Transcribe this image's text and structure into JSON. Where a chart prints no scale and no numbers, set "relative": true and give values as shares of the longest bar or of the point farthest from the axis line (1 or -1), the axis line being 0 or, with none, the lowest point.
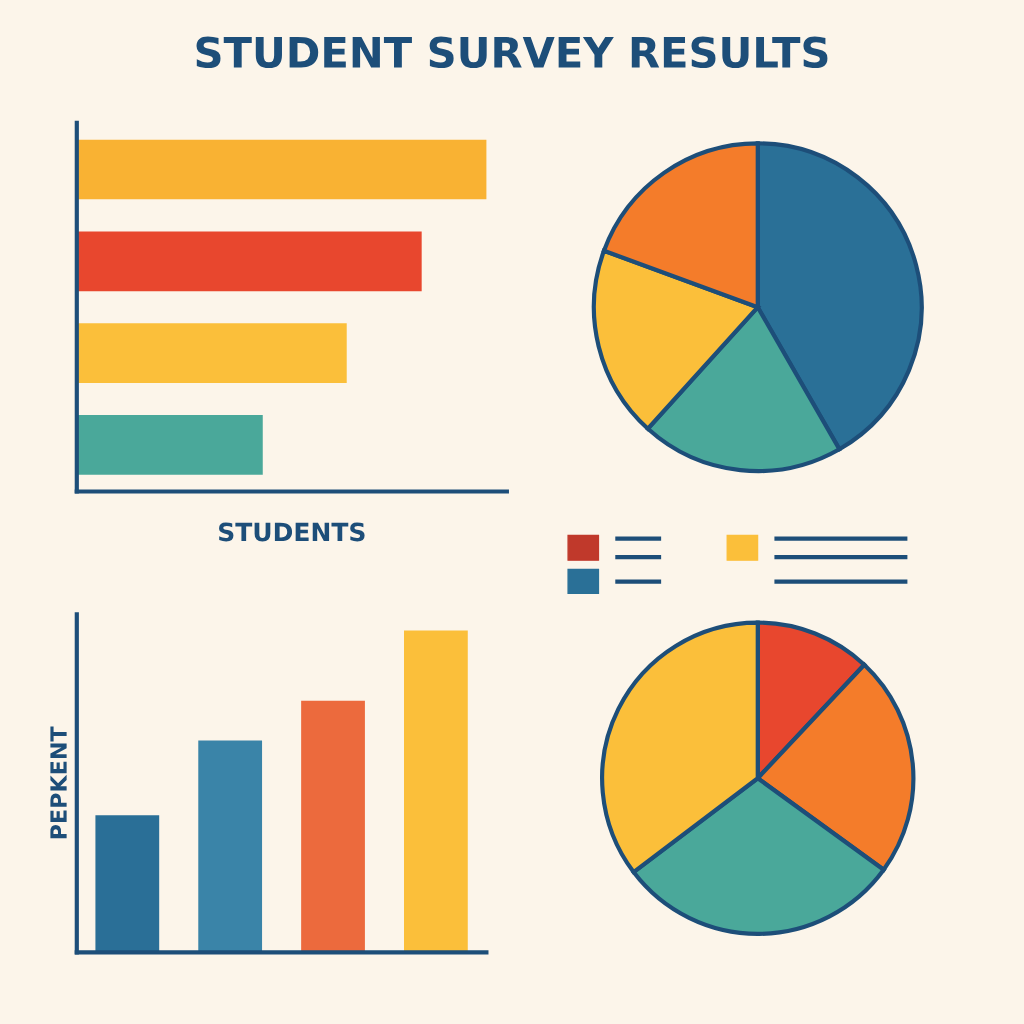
{
  "chart_data": [
    {
      "type": "bar",
      "title": "STUDENT SURVEY RESULTS",
      "orientation": "horizontal",
      "relative": true,
      "xlabel": "STUDENTS",
      "categories": [
        null,
        null,
        null,
        null
      ],
      "values": [
        1,
        0.842,
        0.659,
        0.454
      ],
      "colors": [
        "#f9b233",
        "#e8472e",
        "#fbbf3a",
        "#4aa89a"
      ]
    },
    {
      "type": "pie",
      "categories": [
        null,
        null,
        null,
        null
      ],
      "values": [
        41.7,
        20,
        18.9,
        19.4
      ],
      "colors": [
        "#2a7097",
        "#4aa89a",
        "#fbbf3a",
        "#f47c2a"
      ]
    },
    {
      "type": "bar",
      "relative": true,
      "ylabel": "PEPKENT",
      "categories": [
        null,
        null,
        null,
        null
      ],
      "values": [
        0.426,
        0.658,
        0.782,
        1
      ],
      "colors": [
        "#2a6f97",
        "#3a84a8",
        "#ec6a3d",
        "#fbbf3a"
      ]
    },
    {
      "type": "pie",
      "categories": [
        null,
        null,
        null,
        null
      ],
      "values": [
        12,
        23,
        29.7,
        35.3
      ],
      "colors": [
        "#e8472e",
        "#f47c2a",
        "#4aa89a",
        "#fbbf3a"
      ]
    }
  ]
}
